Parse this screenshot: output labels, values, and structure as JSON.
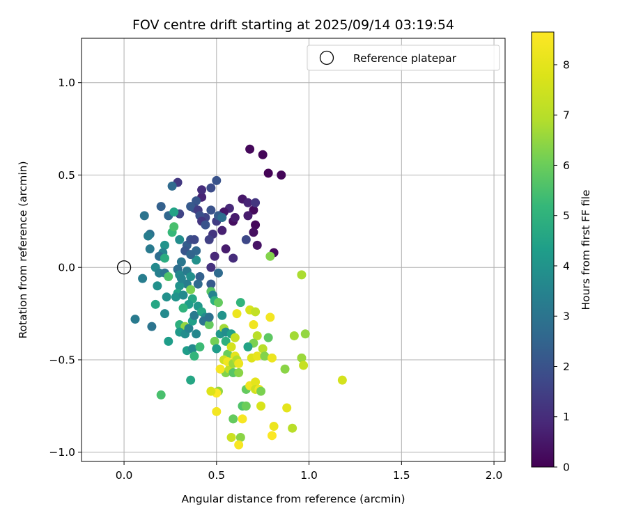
{
  "chart_data": {
    "type": "scatter",
    "title": "FOV centre drift starting at 2025/09/14 03:19:54",
    "xlabel": "Angular distance from reference (arcmin)",
    "ylabel": "Rotation from reference (arcmin)",
    "xlim": [
      -0.23,
      2.06
    ],
    "ylim": [
      -1.05,
      1.24
    ],
    "x_ticks": [
      0.0,
      0.5,
      1.0,
      1.5,
      2.0
    ],
    "x_tick_labels": [
      "0.0",
      "0.5",
      "1.0",
      "1.5",
      "2.0"
    ],
    "y_ticks": [
      -1.0,
      -0.5,
      0.0,
      0.5,
      1.0
    ],
    "y_tick_labels": [
      "−1.0",
      "−0.5",
      "0.0",
      "0.5",
      "1.0"
    ],
    "grid": true,
    "legend": {
      "placement": "top-right",
      "entries": [
        "Reference platepar"
      ]
    },
    "reference_point": {
      "x": 0.0,
      "y": 0.0,
      "label": "Reference platepar"
    },
    "colorbar": {
      "label": "Hours from first FF file",
      "range": [
        0,
        8.65
      ],
      "ticks": [
        0,
        1,
        2,
        3,
        4,
        5,
        6,
        7,
        8
      ],
      "tick_labels": [
        "0",
        "1",
        "2",
        "3",
        "4",
        "5",
        "6",
        "7",
        "8"
      ],
      "colormap": "viridis"
    },
    "series": [
      {
        "points": [
          {
            "x": 0.68,
            "y": 0.64,
            "c": 0.15
          },
          {
            "x": 0.75,
            "y": 0.61,
            "c": 0.1
          },
          {
            "x": 0.78,
            "y": 0.51,
            "c": 0.05
          },
          {
            "x": 0.85,
            "y": 0.5,
            "c": 0.1
          },
          {
            "x": 0.81,
            "y": 0.08,
            "c": 0.2
          },
          {
            "x": 0.7,
            "y": 0.31,
            "c": 0.2
          },
          {
            "x": 0.71,
            "y": 0.23,
            "c": 0.15
          },
          {
            "x": 0.7,
            "y": 0.19,
            "c": 0.3
          },
          {
            "x": 0.72,
            "y": 0.12,
            "c": 0.4
          },
          {
            "x": 0.67,
            "y": 0.28,
            "c": 0.6
          },
          {
            "x": 0.64,
            "y": 0.37,
            "c": 0.5
          },
          {
            "x": 0.67,
            "y": 0.35,
            "c": 0.8
          },
          {
            "x": 0.71,
            "y": 0.35,
            "c": 1.2
          },
          {
            "x": 0.59,
            "y": 0.25,
            "c": 0.3
          },
          {
            "x": 0.6,
            "y": 0.27,
            "c": 0.6
          },
          {
            "x": 0.57,
            "y": 0.32,
            "c": 0.9
          },
          {
            "x": 0.54,
            "y": 0.3,
            "c": 0.5
          },
          {
            "x": 0.53,
            "y": 0.2,
            "c": 0.7
          },
          {
            "x": 0.55,
            "y": 0.1,
            "c": 0.6
          },
          {
            "x": 0.59,
            "y": 0.05,
            "c": 1.0
          },
          {
            "x": 0.49,
            "y": 0.06,
            "c": 0.9
          },
          {
            "x": 0.47,
            "y": 0.0,
            "c": 1.1
          },
          {
            "x": 0.5,
            "y": 0.25,
            "c": 1.4
          },
          {
            "x": 0.48,
            "y": 0.18,
            "c": 1.2
          },
          {
            "x": 0.46,
            "y": 0.15,
            "c": 1.5
          },
          {
            "x": 0.66,
            "y": 0.15,
            "c": 1.7
          },
          {
            "x": 0.44,
            "y": 0.27,
            "c": 1.6
          },
          {
            "x": 0.42,
            "y": 0.38,
            "c": 0.8
          },
          {
            "x": 0.42,
            "y": 0.42,
            "c": 1.0
          },
          {
            "x": 0.47,
            "y": 0.43,
            "c": 1.8
          },
          {
            "x": 0.5,
            "y": 0.47,
            "c": 2.0
          },
          {
            "x": 0.29,
            "y": 0.46,
            "c": 1.3
          },
          {
            "x": 0.26,
            "y": 0.44,
            "c": 2.7
          },
          {
            "x": 0.39,
            "y": 0.36,
            "c": 2.1
          },
          {
            "x": 0.38,
            "y": 0.32,
            "c": 1.8
          },
          {
            "x": 0.36,
            "y": 0.33,
            "c": 2.2
          },
          {
            "x": 0.4,
            "y": 0.31,
            "c": 1.4
          },
          {
            "x": 0.41,
            "y": 0.28,
            "c": 1.9
          },
          {
            "x": 0.42,
            "y": 0.25,
            "c": 1.2
          },
          {
            "x": 0.44,
            "y": 0.23,
            "c": 2.0
          },
          {
            "x": 0.47,
            "y": 0.31,
            "c": 2.0
          },
          {
            "x": 0.51,
            "y": 0.28,
            "c": 2.3
          },
          {
            "x": 0.53,
            "y": 0.27,
            "c": 2.8
          },
          {
            "x": 0.3,
            "y": 0.29,
            "c": 1.6
          },
          {
            "x": 0.2,
            "y": 0.33,
            "c": 2.4
          },
          {
            "x": 0.24,
            "y": 0.28,
            "c": 2.6
          },
          {
            "x": 0.27,
            "y": 0.3,
            "c": 4.5
          },
          {
            "x": 0.11,
            "y": 0.28,
            "c": 3.0
          },
          {
            "x": 0.14,
            "y": 0.18,
            "c": 2.9
          },
          {
            "x": 0.13,
            "y": 0.17,
            "c": 3.3
          },
          {
            "x": 0.26,
            "y": 0.19,
            "c": 5.2
          },
          {
            "x": 0.27,
            "y": 0.22,
            "c": 5.5
          },
          {
            "x": 0.3,
            "y": 0.15,
            "c": 3.8
          },
          {
            "x": 0.34,
            "y": 0.12,
            "c": 2.3
          },
          {
            "x": 0.36,
            "y": 0.15,
            "c": 2.0
          },
          {
            "x": 0.38,
            "y": 0.15,
            "c": 1.7
          },
          {
            "x": 0.33,
            "y": 0.09,
            "c": 2.1
          },
          {
            "x": 0.22,
            "y": 0.12,
            "c": 4.0
          },
          {
            "x": 0.21,
            "y": 0.08,
            "c": 3.5
          },
          {
            "x": 0.14,
            "y": 0.1,
            "c": 3.2
          },
          {
            "x": 0.19,
            "y": 0.06,
            "c": 2.8
          },
          {
            "x": 0.22,
            "y": 0.05,
            "c": 4.8
          },
          {
            "x": 0.39,
            "y": 0.09,
            "c": 2.6
          },
          {
            "x": 0.39,
            "y": 0.04,
            "c": 3.9
          },
          {
            "x": 0.31,
            "y": 0.03,
            "c": 3.1
          },
          {
            "x": 0.36,
            "y": 0.07,
            "c": 2.5
          },
          {
            "x": 0.29,
            "y": -0.01,
            "c": 2.8
          },
          {
            "x": 0.17,
            "y": 0.0,
            "c": 3.7
          },
          {
            "x": 0.19,
            "y": -0.03,
            "c": 3.4
          },
          {
            "x": 0.22,
            "y": -0.03,
            "c": 3.0
          },
          {
            "x": 0.24,
            "y": -0.05,
            "c": 5.6
          },
          {
            "x": 0.3,
            "y": -0.04,
            "c": 3.6
          },
          {
            "x": 0.34,
            "y": -0.02,
            "c": 3.2
          },
          {
            "x": 0.36,
            "y": -0.05,
            "c": 3.9
          },
          {
            "x": 0.41,
            "y": -0.05,
            "c": 2.4
          },
          {
            "x": 0.4,
            "y": -0.09,
            "c": 2.7
          },
          {
            "x": 0.34,
            "y": -0.09,
            "c": 3.3
          },
          {
            "x": 0.3,
            "y": -0.1,
            "c": 4.0
          },
          {
            "x": 0.31,
            "y": -0.06,
            "c": 3.5
          },
          {
            "x": 0.1,
            "y": -0.06,
            "c": 3.3
          },
          {
            "x": 0.18,
            "y": -0.1,
            "c": 3.9
          },
          {
            "x": 0.29,
            "y": -0.14,
            "c": 4.5
          },
          {
            "x": 0.28,
            "y": -0.16,
            "c": 4.0
          },
          {
            "x": 0.32,
            "y": -0.15,
            "c": 3.7
          },
          {
            "x": 0.36,
            "y": -0.12,
            "c": 6.2
          },
          {
            "x": 0.37,
            "y": -0.17,
            "c": 4.6
          },
          {
            "x": 0.35,
            "y": -0.2,
            "c": 4.3
          },
          {
            "x": 0.32,
            "y": -0.22,
            "c": 5.0
          },
          {
            "x": 0.47,
            "y": -0.09,
            "c": 2.2
          },
          {
            "x": 0.47,
            "y": -0.13,
            "c": 5.7
          },
          {
            "x": 0.48,
            "y": -0.15,
            "c": 3.5
          },
          {
            "x": 0.49,
            "y": -0.18,
            "c": 4.9
          },
          {
            "x": 0.51,
            "y": -0.19,
            "c": 5.9
          },
          {
            "x": 0.51,
            "y": -0.03,
            "c": 2.7
          },
          {
            "x": 0.53,
            "y": -0.26,
            "c": 4.0
          },
          {
            "x": 0.23,
            "y": -0.16,
            "c": 3.9
          },
          {
            "x": 0.17,
            "y": -0.2,
            "c": 4.6
          },
          {
            "x": 0.22,
            "y": -0.25,
            "c": 3.7
          },
          {
            "x": 0.06,
            "y": -0.28,
            "c": 3.2
          },
          {
            "x": 0.15,
            "y": -0.32,
            "c": 3.0
          },
          {
            "x": 0.2,
            "y": -0.69,
            "c": 5.5
          },
          {
            "x": 0.24,
            "y": -0.4,
            "c": 4.3
          },
          {
            "x": 0.3,
            "y": -0.31,
            "c": 4.9
          },
          {
            "x": 0.33,
            "y": -0.32,
            "c": 6.5
          },
          {
            "x": 0.3,
            "y": -0.35,
            "c": 4.2
          },
          {
            "x": 0.33,
            "y": -0.36,
            "c": 3.8
          },
          {
            "x": 0.35,
            "y": -0.33,
            "c": 3.5
          },
          {
            "x": 0.37,
            "y": -0.29,
            "c": 4.4
          },
          {
            "x": 0.39,
            "y": -0.36,
            "c": 3.6
          },
          {
            "x": 0.38,
            "y": -0.26,
            "c": 3.2
          },
          {
            "x": 0.4,
            "y": -0.21,
            "c": 4.1
          },
          {
            "x": 0.42,
            "y": -0.24,
            "c": 4.6
          },
          {
            "x": 0.44,
            "y": -0.27,
            "c": 3.8
          },
          {
            "x": 0.43,
            "y": -0.29,
            "c": 3.0
          },
          {
            "x": 0.46,
            "y": -0.31,
            "c": 5.9
          },
          {
            "x": 0.46,
            "y": -0.27,
            "c": 2.9
          },
          {
            "x": 0.34,
            "y": -0.45,
            "c": 4.3
          },
          {
            "x": 0.37,
            "y": -0.44,
            "c": 3.7
          },
          {
            "x": 0.38,
            "y": -0.48,
            "c": 5.1
          },
          {
            "x": 0.36,
            "y": -0.61,
            "c": 4.6
          },
          {
            "x": 0.41,
            "y": -0.43,
            "c": 5.3
          },
          {
            "x": 0.49,
            "y": -0.4,
            "c": 6.1
          },
          {
            "x": 0.5,
            "y": -0.44,
            "c": 4.3
          },
          {
            "x": 0.52,
            "y": -0.36,
            "c": 4.1
          },
          {
            "x": 0.54,
            "y": -0.33,
            "c": 6.7
          },
          {
            "x": 0.55,
            "y": -0.35,
            "c": 3.8
          },
          {
            "x": 0.55,
            "y": -0.4,
            "c": 4.9
          },
          {
            "x": 0.56,
            "y": -0.47,
            "c": 6.0
          },
          {
            "x": 0.54,
            "y": -0.5,
            "c": 7.5
          },
          {
            "x": 0.55,
            "y": -0.57,
            "c": 6.3
          },
          {
            "x": 0.57,
            "y": -0.55,
            "c": 7.2
          },
          {
            "x": 0.56,
            "y": -0.51,
            "c": 8.3
          },
          {
            "x": 0.59,
            "y": -0.52,
            "c": 6.6
          },
          {
            "x": 0.6,
            "y": -0.48,
            "c": 8.0
          },
          {
            "x": 0.61,
            "y": -0.5,
            "c": 6.9
          },
          {
            "x": 0.62,
            "y": -0.52,
            "c": 8.2
          },
          {
            "x": 0.59,
            "y": -0.57,
            "c": 5.7
          },
          {
            "x": 0.62,
            "y": -0.57,
            "c": 6.4
          },
          {
            "x": 0.58,
            "y": -0.43,
            "c": 7.6
          },
          {
            "x": 0.58,
            "y": -0.36,
            "c": 4.4
          },
          {
            "x": 0.6,
            "y": -0.38,
            "c": 7.3
          },
          {
            "x": 0.61,
            "y": -0.25,
            "c": 8.2
          },
          {
            "x": 0.63,
            "y": -0.19,
            "c": 5.1
          },
          {
            "x": 0.68,
            "y": -0.23,
            "c": 7.7
          },
          {
            "x": 0.71,
            "y": -0.24,
            "c": 7.2
          },
          {
            "x": 0.7,
            "y": -0.31,
            "c": 8.3
          },
          {
            "x": 0.72,
            "y": -0.37,
            "c": 7.0
          },
          {
            "x": 0.7,
            "y": -0.41,
            "c": 6.2
          },
          {
            "x": 0.67,
            "y": -0.43,
            "c": 4.5
          },
          {
            "x": 0.69,
            "y": -0.49,
            "c": 7.8
          },
          {
            "x": 0.72,
            "y": -0.48,
            "c": 8.1
          },
          {
            "x": 0.75,
            "y": -0.44,
            "c": 7.0
          },
          {
            "x": 0.76,
            "y": -0.48,
            "c": 6.3
          },
          {
            "x": 0.78,
            "y": -0.38,
            "c": 5.8
          },
          {
            "x": 0.79,
            "y": -0.27,
            "c": 8.4
          },
          {
            "x": 0.8,
            "y": -0.49,
            "c": 8.2
          },
          {
            "x": 0.52,
            "y": -0.55,
            "c": 8.5
          },
          {
            "x": 0.51,
            "y": -0.67,
            "c": 6.5
          },
          {
            "x": 0.5,
            "y": -0.68,
            "c": 8.6
          },
          {
            "x": 0.47,
            "y": -0.67,
            "c": 7.8
          },
          {
            "x": 0.5,
            "y": -0.78,
            "c": 8.4
          },
          {
            "x": 0.59,
            "y": -0.82,
            "c": 5.9
          },
          {
            "x": 0.64,
            "y": -0.82,
            "c": 8.5
          },
          {
            "x": 0.64,
            "y": -0.75,
            "c": 5.6
          },
          {
            "x": 0.66,
            "y": -0.75,
            "c": 6.0
          },
          {
            "x": 0.66,
            "y": -0.66,
            "c": 5.9
          },
          {
            "x": 0.68,
            "y": -0.64,
            "c": 8.3
          },
          {
            "x": 0.71,
            "y": -0.62,
            "c": 8.0
          },
          {
            "x": 0.71,
            "y": -0.66,
            "c": 7.5
          },
          {
            "x": 0.73,
            "y": -0.66,
            "c": 8.3
          },
          {
            "x": 0.74,
            "y": -0.75,
            "c": 7.7
          },
          {
            "x": 0.74,
            "y": -0.67,
            "c": 6.2
          },
          {
            "x": 0.58,
            "y": -0.92,
            "c": 7.4
          },
          {
            "x": 0.63,
            "y": -0.92,
            "c": 6.4
          },
          {
            "x": 0.62,
            "y": -0.96,
            "c": 8.5
          },
          {
            "x": 0.81,
            "y": -0.86,
            "c": 8.2
          },
          {
            "x": 0.8,
            "y": -0.91,
            "c": 8.6
          },
          {
            "x": 0.87,
            "y": -0.55,
            "c": 6.4
          },
          {
            "x": 0.88,
            "y": -0.76,
            "c": 8.0
          },
          {
            "x": 0.91,
            "y": -0.87,
            "c": 7.0
          },
          {
            "x": 0.92,
            "y": -0.37,
            "c": 6.7
          },
          {
            "x": 0.96,
            "y": -0.49,
            "c": 6.6
          },
          {
            "x": 0.97,
            "y": -0.53,
            "c": 7.3
          },
          {
            "x": 0.98,
            "y": -0.36,
            "c": 6.5
          },
          {
            "x": 0.96,
            "y": -0.04,
            "c": 6.8
          },
          {
            "x": 0.79,
            "y": 0.06,
            "c": 6.3
          },
          {
            "x": 1.18,
            "y": -0.61,
            "c": 7.6
          }
        ]
      }
    ]
  }
}
